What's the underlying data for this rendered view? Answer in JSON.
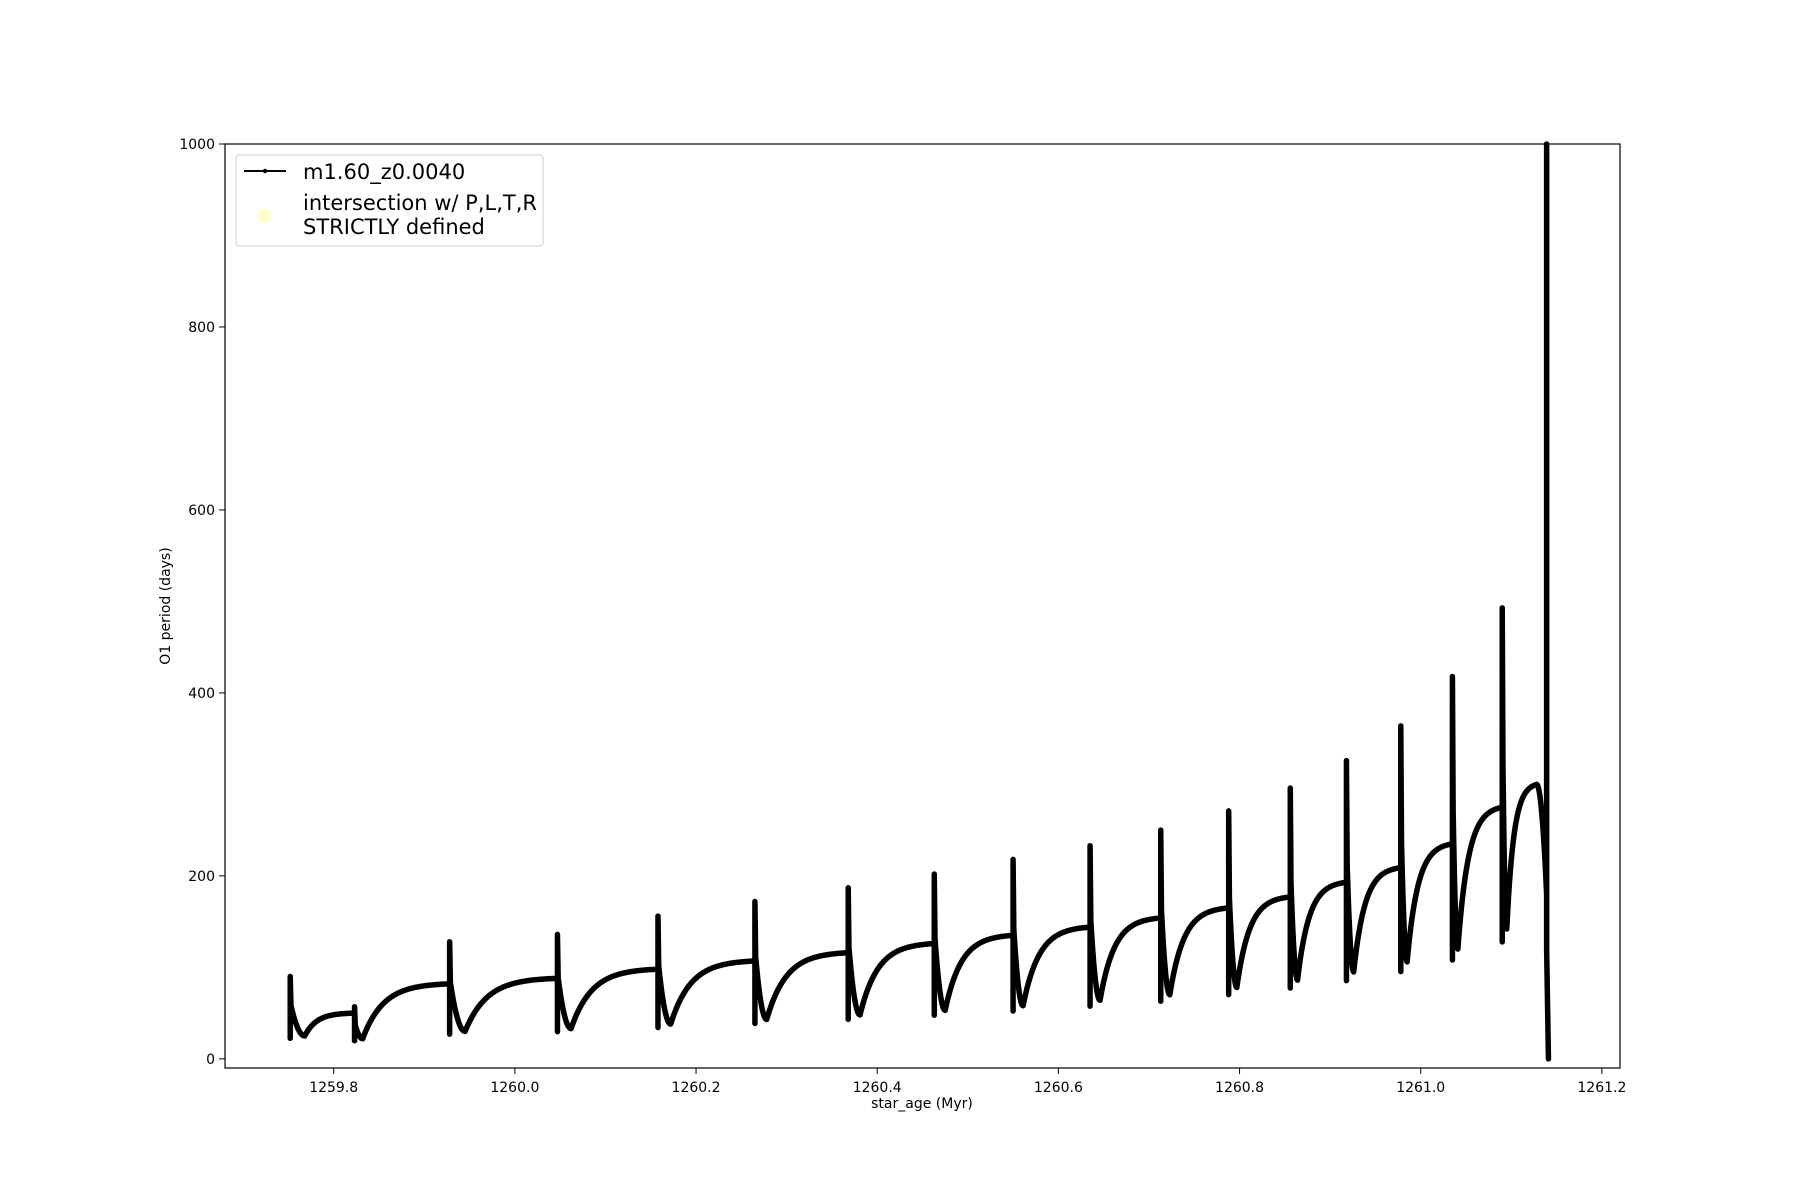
{
  "chart_data": {
    "type": "line",
    "title": "",
    "xlabel": "star_age (Myr)",
    "ylabel": "O1 period (days)",
    "xlim": [
      1259.68,
      1261.22
    ],
    "ylim": [
      -10,
      1000
    ],
    "xticks": [
      1259.8,
      1260.0,
      1260.2,
      1260.4,
      1260.6,
      1260.8,
      1261.0,
      1261.2
    ],
    "xtick_labels": [
      "1259.8",
      "1260.0",
      "1260.2",
      "1260.4",
      "1260.6",
      "1260.8",
      "1261.0",
      "1261.2"
    ],
    "yticks": [
      0,
      200,
      400,
      600,
      800,
      1000
    ],
    "ytick_labels": [
      "0",
      "200",
      "400",
      "600",
      "800",
      "1000"
    ],
    "grid": false,
    "legend": {
      "position": "top-left",
      "entries": [
        {
          "label": "m1.60_z0.0040",
          "marker": "line-dot",
          "color": "#000000"
        },
        {
          "label_line1": "intersection w/ P,L,T,R",
          "label_line2": "STRICTLY defined",
          "marker": "circle",
          "color": "#ffffcc"
        }
      ]
    },
    "series": [
      {
        "name": "m1.60_z0.0040",
        "color": "#000000",
        "cycles": [
          {
            "t0": 1259.752,
            "t1": 1259.823,
            "spike": 90,
            "dip": 25,
            "dip_t": 1259.768,
            "plateau": 50
          },
          {
            "t0": 1259.823,
            "t1": 1259.928,
            "spike": 57,
            "dip": 22,
            "dip_t": 1259.832,
            "plateau": 82
          },
          {
            "t0": 1259.928,
            "t1": 1260.047,
            "spike": 128,
            "dip": 30,
            "dip_t": 1259.945,
            "plateau": 88
          },
          {
            "t0": 1260.047,
            "t1": 1260.158,
            "spike": 136,
            "dip": 33,
            "dip_t": 1260.062,
            "plateau": 98
          },
          {
            "t0": 1260.158,
            "t1": 1260.265,
            "spike": 156,
            "dip": 38,
            "dip_t": 1260.172,
            "plateau": 107
          },
          {
            "t0": 1260.265,
            "t1": 1260.368,
            "spike": 172,
            "dip": 43,
            "dip_t": 1260.278,
            "plateau": 116
          },
          {
            "t0": 1260.368,
            "t1": 1260.463,
            "spike": 187,
            "dip": 48,
            "dip_t": 1260.381,
            "plateau": 126
          },
          {
            "t0": 1260.463,
            "t1": 1260.55,
            "spike": 202,
            "dip": 53,
            "dip_t": 1260.475,
            "plateau": 135
          },
          {
            "t0": 1260.55,
            "t1": 1260.635,
            "spike": 218,
            "dip": 58,
            "dip_t": 1260.561,
            "plateau": 144
          },
          {
            "t0": 1260.635,
            "t1": 1260.713,
            "spike": 233,
            "dip": 64,
            "dip_t": 1260.646,
            "plateau": 154
          },
          {
            "t0": 1260.713,
            "t1": 1260.788,
            "spike": 250,
            "dip": 70,
            "dip_t": 1260.723,
            "plateau": 165
          },
          {
            "t0": 1260.788,
            "t1": 1260.856,
            "spike": 271,
            "dip": 78,
            "dip_t": 1260.797,
            "plateau": 177
          },
          {
            "t0": 1260.856,
            "t1": 1260.918,
            "spike": 296,
            "dip": 86,
            "dip_t": 1260.864,
            "plateau": 193
          },
          {
            "t0": 1260.918,
            "t1": 1260.978,
            "spike": 326,
            "dip": 95,
            "dip_t": 1260.926,
            "plateau": 209
          },
          {
            "t0": 1260.978,
            "t1": 1261.035,
            "spike": 364,
            "dip": 106,
            "dip_t": 1260.985,
            "plateau": 235
          },
          {
            "t0": 1261.035,
            "t1": 1261.09,
            "spike": 418,
            "dip": 120,
            "dip_t": 1261.041,
            "plateau": 275
          },
          {
            "t0": 1261.09,
            "t1": 1261.139,
            "spike": 493,
            "dip": 142,
            "dip_t": 1261.095,
            "plateau": 300,
            "peak_t": 1261.128
          }
        ],
        "final_drop": {
          "t": 1261.139,
          "top": 1000,
          "bottom": 0
        }
      }
    ]
  }
}
